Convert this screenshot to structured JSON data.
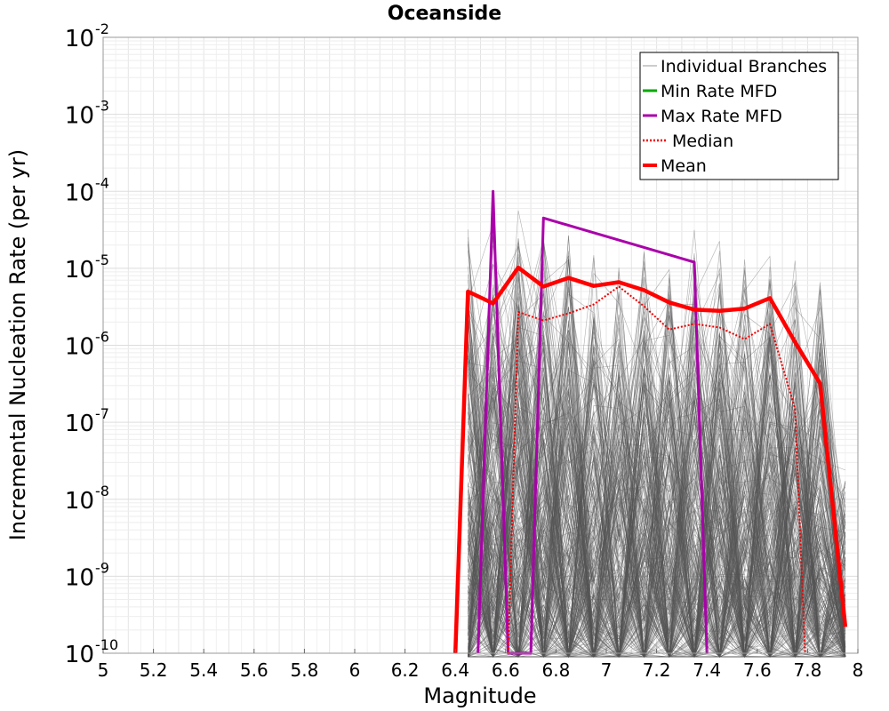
{
  "chart_data": {
    "type": "line",
    "title": "Oceanside",
    "xlabel": "Magnitude",
    "ylabel": "Incremental Nucleation Rate (per yr)",
    "xlim": [
      5.0,
      8.0
    ],
    "ylim": [
      1e-10,
      0.01
    ],
    "yscale": "log",
    "grid": true,
    "legend_position": "top-right",
    "x_ticks": [
      "5",
      "5.2",
      "5.4",
      "5.6",
      "5.8",
      "6",
      "6.2",
      "6.4",
      "6.6",
      "6.8",
      "7",
      "7.2",
      "7.4",
      "7.6",
      "7.8",
      "8"
    ],
    "y_ticks": [
      {
        "base": "10",
        "exp": "-2"
      },
      {
        "base": "10",
        "exp": "-3"
      },
      {
        "base": "10",
        "exp": "-4"
      },
      {
        "base": "10",
        "exp": "-5"
      },
      {
        "base": "10",
        "exp": "-6"
      },
      {
        "base": "10",
        "exp": "-7"
      },
      {
        "base": "10",
        "exp": "-8"
      },
      {
        "base": "10",
        "exp": "-9"
      },
      {
        "base": "10",
        "exp": "-10"
      }
    ],
    "series": [
      {
        "name": "Individual Branches",
        "color": "#555555",
        "style": "thin",
        "x": [
          6.45,
          6.55,
          6.65,
          6.75,
          6.85,
          6.95,
          7.05,
          7.15,
          7.25,
          7.35,
          7.45,
          7.55,
          7.65,
          7.75,
          7.85,
          7.95
        ],
        "peak_envelope": [
          0.0001,
          0.0001,
          6e-05,
          5e-05,
          5e-05,
          3.5e-05,
          3e-05,
          2.5e-05,
          2.2e-05,
          6e-05,
          6e-05,
          5e-05,
          3e-05,
          1.5e-05,
          1.2e-05,
          2.5e-08
        ]
      },
      {
        "name": "Min Rate MFD",
        "color": "#00aa00",
        "x": [],
        "y": []
      },
      {
        "name": "Max Rate MFD",
        "color": "#aa00aa",
        "x": [
          6.49,
          6.55,
          6.61,
          6.7,
          6.75,
          7.35,
          7.4
        ],
        "y": [
          1e-10,
          0.0001,
          1e-10,
          1e-10,
          4.5e-05,
          1.2e-05,
          1e-10
        ]
      },
      {
        "name": "Median",
        "color": "#ee0000",
        "style": "dotted",
        "x": [
          6.61,
          6.65,
          6.75,
          6.85,
          6.95,
          7.05,
          7.15,
          7.25,
          7.35,
          7.45,
          7.55,
          7.65,
          7.75,
          7.79
        ],
        "y": [
          1e-10,
          2.7e-06,
          2.1e-06,
          2.6e-06,
          3.4e-06,
          5.8e-06,
          3.2e-06,
          1.6e-06,
          1.9e-06,
          1.7e-06,
          1.2e-06,
          1.9e-06,
          1.5e-07,
          1e-10
        ]
      },
      {
        "name": "Mean",
        "color": "#ff0000",
        "style": "thick",
        "x": [
          6.4,
          6.45,
          6.55,
          6.65,
          6.75,
          6.85,
          6.95,
          7.05,
          7.15,
          7.25,
          7.35,
          7.45,
          7.55,
          7.65,
          7.75,
          7.85,
          7.95
        ],
        "y": [
          1e-10,
          5e-06,
          3.5e-06,
          1.02e-05,
          5.8e-06,
          7.5e-06,
          5.9e-06,
          6.6e-06,
          5.2e-06,
          3.6e-06,
          2.9e-06,
          2.8e-06,
          3e-06,
          4.1e-06,
          1.1e-06,
          3.2e-07,
          2.2e-10
        ]
      }
    ]
  }
}
